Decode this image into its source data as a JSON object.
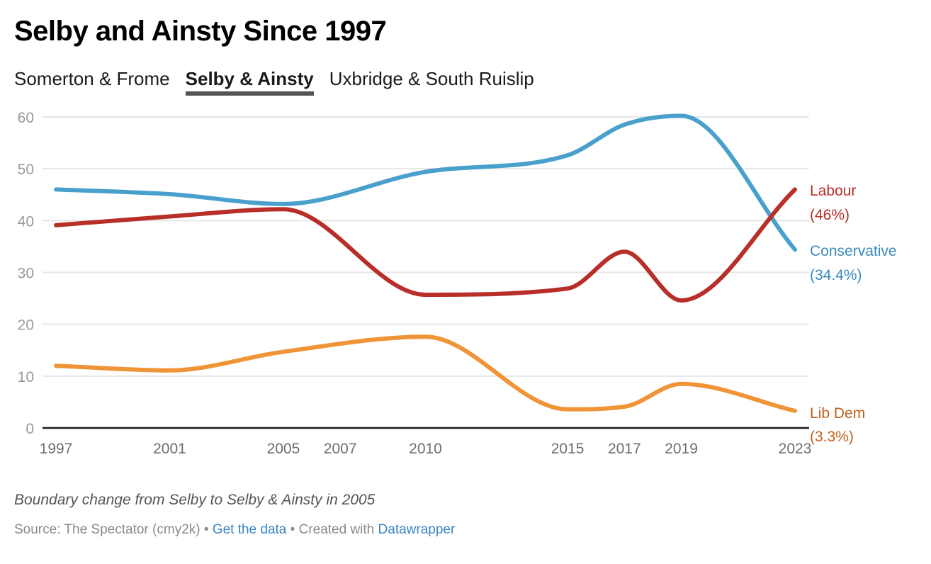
{
  "header": {
    "title": "Selby and Ainsty Since 1997",
    "tabs": [
      {
        "label": "Somerton & Frome",
        "active": false
      },
      {
        "label": "Selby & Ainsty",
        "active": true
      },
      {
        "label": "Uxbridge & South Ruislip",
        "active": false
      }
    ]
  },
  "footer": {
    "note": "Boundary change from Selby to Selby & Ainsty in 2005",
    "source_prefix": "Source: The Spectator (cmy2k) • ",
    "get_data": "Get the data",
    "created_with": " • Created with ",
    "datawrapper": "Datawrapper"
  },
  "chart_data": {
    "type": "line",
    "title": "Selby and Ainsty Since 1997",
    "xlabel": "",
    "ylabel": "",
    "x": [
      1997,
      2001,
      2005,
      2010,
      2015,
      2017,
      2019,
      2023
    ],
    "x_ticks": [
      "1997",
      "2001",
      "2005",
      "2007",
      "2010",
      "2015",
      "2017",
      "2019",
      "2023"
    ],
    "y_ticks": [
      "0",
      "10",
      "20",
      "30",
      "40",
      "50",
      "60"
    ],
    "xlim": [
      1997,
      2023
    ],
    "ylim": [
      0,
      60
    ],
    "grid": true,
    "legend": "direct labels at line ends (right)",
    "series": [
      {
        "name": "Conservative",
        "end_label": "(34.4%)",
        "color": "#4aa0cc",
        "label_color": "#3a8bbb",
        "values": [
          46.0,
          45.1,
          43.2,
          49.4,
          52.6,
          58.5,
          60.2,
          34.4
        ]
      },
      {
        "name": "Labour",
        "end_label": "(46%)",
        "color": "#b82e28",
        "label_color": "#b82e28",
        "values": [
          39.1,
          40.8,
          42.2,
          25.7,
          26.9,
          34.0,
          24.6,
          46.0
        ]
      },
      {
        "name": "Lib Dem",
        "end_label": "(3.3%)",
        "color": "#ef9537",
        "label_color": "#c0611d",
        "values": [
          12.0,
          11.1,
          14.7,
          17.6,
          3.6,
          4.1,
          8.5,
          3.3
        ]
      }
    ]
  }
}
